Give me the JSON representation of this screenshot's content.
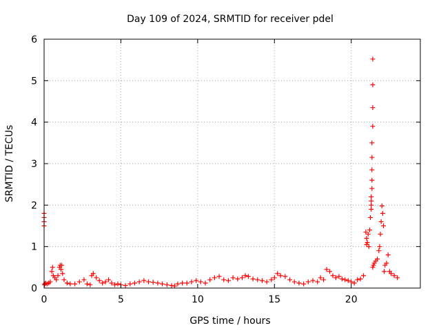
{
  "chart_data": {
    "type": "scatter",
    "title": "Day 109 of 2024, SRMTID for receiver pdel",
    "xlabel": "GPS time / hours",
    "ylabel": "SRMTID / TECUs",
    "xlim": [
      0,
      24.5
    ],
    "ylim": [
      0,
      6
    ],
    "xticks": [
      0,
      5,
      10,
      15,
      20
    ],
    "yticks": [
      0,
      1,
      2,
      3,
      4,
      5,
      6
    ],
    "grid": true,
    "marker": "plus",
    "color": "#ff0000",
    "series": [
      {
        "name": "SRMTID",
        "x": [
          0.0,
          0.0,
          0.0,
          0.0,
          0.02,
          0.05,
          0.1,
          0.2,
          0.3,
          0.4,
          0.5,
          0.55,
          0.6,
          0.7,
          0.8,
          0.9,
          1.0,
          1.05,
          1.1,
          1.15,
          1.2,
          1.3,
          1.5,
          1.7,
          2.0,
          2.3,
          2.6,
          2.8,
          3.0,
          3.1,
          3.2,
          3.4,
          3.6,
          3.8,
          4.0,
          4.2,
          4.4,
          4.6,
          4.8,
          5.0,
          5.3,
          5.6,
          5.9,
          6.2,
          6.5,
          6.8,
          7.1,
          7.4,
          7.7,
          8.0,
          8.3,
          8.5,
          8.7,
          9.0,
          9.3,
          9.6,
          9.9,
          10.2,
          10.5,
          10.8,
          11.1,
          11.4,
          11.7,
          12.0,
          12.3,
          12.6,
          12.9,
          13.1,
          13.3,
          13.6,
          13.9,
          14.2,
          14.5,
          14.8,
          15.0,
          15.2,
          15.4,
          15.7,
          16.0,
          16.3,
          16.6,
          16.9,
          17.2,
          17.5,
          17.8,
          18.0,
          18.2,
          18.4,
          18.6,
          18.8,
          19.0,
          19.2,
          19.4,
          19.6,
          19.8,
          20.0,
          20.2,
          20.4,
          20.6,
          20.8,
          20.95,
          21.0,
          21.0,
          21.05,
          21.1,
          21.15,
          21.2,
          21.25,
          21.3,
          21.3,
          21.3,
          21.3,
          21.35,
          21.35,
          21.35,
          21.35,
          21.35,
          21.4,
          21.4,
          21.4,
          21.4,
          21.4,
          21.45,
          21.5,
          21.6,
          21.7,
          21.8,
          21.85,
          21.9,
          21.95,
          22.0,
          22.05,
          22.1,
          22.15,
          22.2,
          22.3,
          22.4,
          22.5,
          22.6,
          22.8,
          23.0
        ],
        "y": [
          1.8,
          1.7,
          1.6,
          1.5,
          0.08,
          0.1,
          0.12,
          0.1,
          0.12,
          0.15,
          0.4,
          0.5,
          0.3,
          0.25,
          0.2,
          0.3,
          0.5,
          0.55,
          0.45,
          0.55,
          0.35,
          0.2,
          0.12,
          0.1,
          0.1,
          0.15,
          0.2,
          0.1,
          0.08,
          0.3,
          0.35,
          0.25,
          0.18,
          0.12,
          0.15,
          0.2,
          0.12,
          0.08,
          0.1,
          0.08,
          0.06,
          0.1,
          0.12,
          0.15,
          0.18,
          0.15,
          0.14,
          0.12,
          0.1,
          0.08,
          0.06,
          0.05,
          0.1,
          0.12,
          0.12,
          0.15,
          0.18,
          0.15,
          0.12,
          0.2,
          0.25,
          0.28,
          0.2,
          0.18,
          0.25,
          0.22,
          0.25,
          0.3,
          0.28,
          0.22,
          0.2,
          0.18,
          0.15,
          0.2,
          0.25,
          0.35,
          0.3,
          0.28,
          0.2,
          0.15,
          0.12,
          0.1,
          0.15,
          0.18,
          0.15,
          0.25,
          0.2,
          0.45,
          0.4,
          0.3,
          0.25,
          0.28,
          0.22,
          0.2,
          0.18,
          0.15,
          0.12,
          0.2,
          0.22,
          0.3,
          1.35,
          1.2,
          1.05,
          1.1,
          1.3,
          1.0,
          1.4,
          1.7,
          1.9,
          2.0,
          2.1,
          2.2,
          2.4,
          2.6,
          2.85,
          3.15,
          3.5,
          3.9,
          4.35,
          4.9,
          5.52,
          0.5,
          0.55,
          0.6,
          0.65,
          0.7,
          0.9,
          1.0,
          1.3,
          1.6,
          1.98,
          1.8,
          1.5,
          0.4,
          0.55,
          0.6,
          0.8,
          0.4,
          0.35,
          0.3,
          0.25
        ]
      }
    ]
  }
}
